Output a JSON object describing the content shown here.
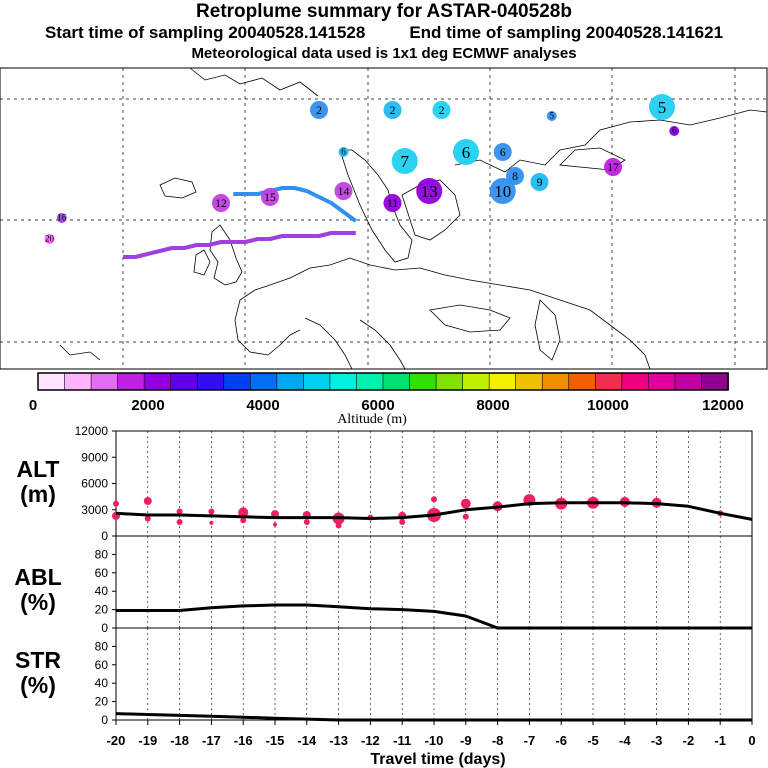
{
  "header": {
    "title": "Retroplume summary for ASTAR-040528b",
    "start_label": "Start time of sampling 20040528.141528",
    "end_label": "End time of sampling 20040528.141621",
    "met_label": "Meteorological data used is 1x1 deg ECMWF analyses"
  },
  "colorbar": {
    "title": "Altitude (m)",
    "tick_labels": [
      "0",
      "2000",
      "4000",
      "6000",
      "8000",
      "10000",
      "12000"
    ],
    "colors": [
      "#ffe4ff",
      "#ffb4ff",
      "#e070f0",
      "#c020e0",
      "#9000e0",
      "#6000e8",
      "#3010f0",
      "#0040f0",
      "#0070f0",
      "#00a8f0",
      "#00d0f0",
      "#00f0e0",
      "#00f0b0",
      "#00e070",
      "#30e000",
      "#80e000",
      "#c0f000",
      "#f0f000",
      "#f0c000",
      "#f09000",
      "#f06000",
      "#f03050",
      "#f00080",
      "#e000a0",
      "#c000a0",
      "#900090"
    ]
  },
  "map": {
    "trajectories": [
      {
        "name": "low-level",
        "color": "#a040e0",
        "points": [
          [
            -20,
            63
          ],
          [
            -19,
            63
          ],
          [
            -18,
            62
          ],
          [
            -17,
            61
          ],
          [
            -16,
            60
          ],
          [
            -15,
            60
          ],
          [
            -14,
            59
          ],
          [
            -13,
            59
          ],
          [
            -12,
            58
          ],
          [
            -11,
            58
          ],
          [
            -10,
            58
          ],
          [
            -9,
            57
          ],
          [
            -8,
            57
          ],
          [
            -7,
            56
          ],
          [
            -6,
            56
          ],
          [
            -5,
            56
          ],
          [
            -4,
            56
          ],
          [
            -3,
            55
          ],
          [
            -2,
            55
          ],
          [
            -1,
            55
          ]
        ]
      },
      {
        "name": "upper-level",
        "color": "#3090f0",
        "points": [
          [
            -11,
            42
          ],
          [
            -10,
            42
          ],
          [
            -9,
            42
          ],
          [
            -8,
            41
          ],
          [
            -7,
            40
          ],
          [
            -6,
            40
          ],
          [
            -5,
            41
          ],
          [
            -4,
            43
          ],
          [
            -3,
            45
          ],
          [
            -2,
            48
          ],
          [
            -1,
            51
          ]
        ]
      }
    ],
    "labels": [
      {
        "t": "2",
        "lon": -4,
        "lat": 14,
        "c": "#3090f0",
        "size": "m"
      },
      {
        "t": "2",
        "lon": 2,
        "lat": 14,
        "c": "#20b8f0",
        "size": "m"
      },
      {
        "t": "2",
        "lon": 6,
        "lat": 14,
        "c": "#20d0f0",
        "size": "m"
      },
      {
        "t": "5",
        "lon": 24,
        "lat": 13,
        "c": "#20d0f0",
        "size": "l"
      },
      {
        "t": "5",
        "lon": 15,
        "lat": 16,
        "c": "#3090f0",
        "size": "s"
      },
      {
        "t": "6",
        "lon": 25,
        "lat": 21,
        "c": "#9000e0",
        "size": "s"
      },
      {
        "t": "6",
        "lon": -2,
        "lat": 28,
        "c": "#20b8f0",
        "size": "s"
      },
      {
        "t": "6",
        "lon": 8,
        "lat": 28,
        "c": "#20d0f0",
        "size": "l"
      },
      {
        "t": "6",
        "lon": 11,
        "lat": 28,
        "c": "#3090f0",
        "size": "m"
      },
      {
        "t": "7",
        "lon": 3,
        "lat": 31,
        "c": "#20d0f0",
        "size": "l"
      },
      {
        "t": "8",
        "lon": 12,
        "lat": 36,
        "c": "#3090f0",
        "size": "m"
      },
      {
        "t": "9",
        "lon": 14,
        "lat": 38,
        "c": "#20b8f0",
        "size": "m"
      },
      {
        "t": "10",
        "lon": 11,
        "lat": 41,
        "c": "#3090f0",
        "size": "l"
      },
      {
        "t": "11",
        "lon": 2,
        "lat": 45,
        "c": "#9000e0",
        "size": "m"
      },
      {
        "t": "13",
        "lon": 5,
        "lat": 41,
        "c": "#9000e0",
        "size": "l"
      },
      {
        "t": "14",
        "lon": -2,
        "lat": 41,
        "c": "#c040e0",
        "size": "m"
      },
      {
        "t": "15",
        "lon": -8,
        "lat": 43,
        "c": "#c040e0",
        "size": "m"
      },
      {
        "t": "16",
        "lon": -25,
        "lat": 50,
        "c": "#a040e0",
        "size": "s"
      },
      {
        "t": "17",
        "lon": 20,
        "lat": 33,
        "c": "#c020e0",
        "size": "m"
      },
      {
        "t": "12",
        "lon": -12,
        "lat": 45,
        "c": "#c040e0",
        "size": "m"
      },
      {
        "t": "20",
        "lon": -26,
        "lat": 57,
        "c": "#ff60ff",
        "size": "s"
      }
    ]
  },
  "chart_data": [
    {
      "type": "line",
      "panel": "ALT",
      "title": "ALT",
      "ylabel": "(m)",
      "xlabel": "Travel time (days)",
      "x": [
        -20,
        -19,
        -18,
        -17,
        -16,
        -15,
        -14,
        -13,
        -12,
        -11,
        -10,
        -9,
        -8,
        -7,
        -6,
        -5,
        -4,
        -3,
        -2,
        -1,
        0
      ],
      "values": [
        2600,
        2400,
        2400,
        2300,
        2200,
        2100,
        2100,
        2100,
        2000,
        2100,
        2400,
        3000,
        3300,
        3700,
        3800,
        3800,
        3800,
        3700,
        3400,
        2600,
        1900
      ],
      "xlim": [
        -20,
        0
      ],
      "ylim": [
        0,
        12000
      ],
      "yticks": [
        "0",
        "3000",
        "6000",
        "9000",
        "12000"
      ],
      "scatter": [
        {
          "x": -20,
          "y": 3700,
          "s": 3
        },
        {
          "x": -20,
          "y": 2300,
          "s": 4
        },
        {
          "x": -19,
          "y": 4000,
          "s": 4
        },
        {
          "x": -19,
          "y": 2000,
          "s": 3
        },
        {
          "x": -18,
          "y": 2800,
          "s": 3
        },
        {
          "x": -18,
          "y": 1600,
          "s": 3
        },
        {
          "x": -17,
          "y": 2800,
          "s": 3
        },
        {
          "x": -17,
          "y": 1500,
          "s": 2
        },
        {
          "x": -16,
          "y": 2700,
          "s": 5
        },
        {
          "x": -16,
          "y": 1800,
          "s": 3
        },
        {
          "x": -15,
          "y": 2500,
          "s": 4
        },
        {
          "x": -15,
          "y": 1300,
          "s": 2
        },
        {
          "x": -14,
          "y": 2400,
          "s": 4
        },
        {
          "x": -14,
          "y": 1600,
          "s": 3
        },
        {
          "x": -13,
          "y": 2000,
          "s": 6
        },
        {
          "x": -13,
          "y": 1200,
          "s": 3
        },
        {
          "x": -12,
          "y": 2100,
          "s": 3
        },
        {
          "x": -11,
          "y": 2300,
          "s": 4
        },
        {
          "x": -11,
          "y": 1600,
          "s": 3
        },
        {
          "x": -10,
          "y": 2400,
          "s": 7
        },
        {
          "x": -10,
          "y": 4200,
          "s": 3
        },
        {
          "x": -9,
          "y": 3700,
          "s": 5
        },
        {
          "x": -9,
          "y": 2200,
          "s": 3
        },
        {
          "x": -8,
          "y": 3400,
          "s": 5
        },
        {
          "x": -7,
          "y": 4100,
          "s": 6
        },
        {
          "x": -6,
          "y": 3700,
          "s": 6
        },
        {
          "x": -5,
          "y": 3800,
          "s": 6
        },
        {
          "x": -4,
          "y": 3900,
          "s": 5
        },
        {
          "x": -3,
          "y": 3800,
          "s": 5
        },
        {
          "x": -1,
          "y": 2600,
          "s": 3
        }
      ]
    },
    {
      "type": "line",
      "panel": "ABL",
      "title": "ABL",
      "ylabel": "(%)",
      "x": [
        -20,
        -19,
        -18,
        -17,
        -16,
        -15,
        -14,
        -13,
        -12,
        -11,
        -10,
        -9,
        -8,
        -7,
        -6,
        -5,
        -4,
        -3,
        -2,
        -1,
        0
      ],
      "values": [
        19,
        19,
        19,
        22,
        24,
        25,
        25,
        23,
        21,
        20,
        18,
        13,
        0,
        0,
        0,
        0,
        0,
        0,
        0,
        0,
        0
      ],
      "ylim": [
        0,
        100
      ],
      "yticks": [
        "0",
        "20",
        "40",
        "60",
        "80"
      ]
    },
    {
      "type": "line",
      "panel": "STR",
      "title": "STR",
      "ylabel": "(%)",
      "x": [
        -20,
        -19,
        -18,
        -17,
        -16,
        -15,
        -14,
        -13,
        -12,
        -11,
        -10,
        -9,
        -8,
        -7,
        -6,
        -5,
        -4,
        -3,
        -2,
        -1,
        0
      ],
      "values": [
        7,
        6,
        5,
        4,
        3,
        2,
        1,
        0,
        0,
        0,
        0,
        0,
        0,
        0,
        0,
        0,
        0,
        0,
        0,
        0,
        0
      ],
      "ylim": [
        0,
        100
      ],
      "yticks": [
        "0",
        "20",
        "40",
        "60",
        "80"
      ],
      "xtick_labels": [
        "-20",
        "-19",
        "-18",
        "-17",
        "-16",
        "-15",
        "-14",
        "-13",
        "-12",
        "-11",
        "-10",
        "-9",
        "-8",
        "-7",
        "-6",
        "-5",
        "-4",
        "-3",
        "-2",
        "-1",
        "0"
      ]
    }
  ]
}
